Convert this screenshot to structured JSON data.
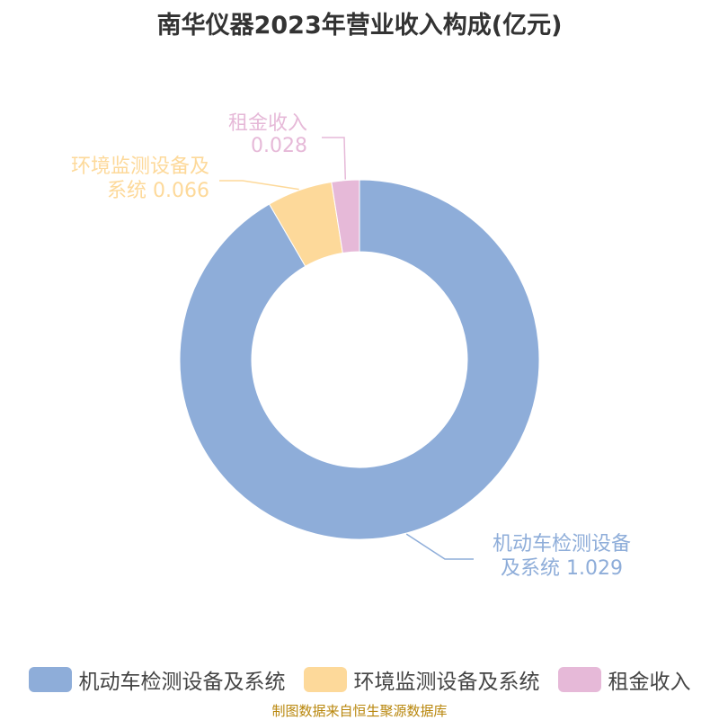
{
  "chart_data": {
    "type": "pie",
    "title": "南华仪器2023年营业收入构成(亿元)",
    "donut": true,
    "categories": [
      "机动车检测设备及系统",
      "环境监测设备及系统",
      "租金收入"
    ],
    "values": [
      1.029,
      0.066,
      0.028
    ],
    "colors": [
      "#8eadd9",
      "#fdd99a",
      "#e6b9d8"
    ],
    "data_labels": [
      [
        "机动车检测设备",
        "及系统 1.029"
      ],
      [
        "环境监测设备及",
        "系统 0.066"
      ],
      [
        "租金收入",
        "0.028"
      ]
    ],
    "legend_position": "bottom"
  },
  "source_note": "制图数据来自恒生聚源数据库"
}
